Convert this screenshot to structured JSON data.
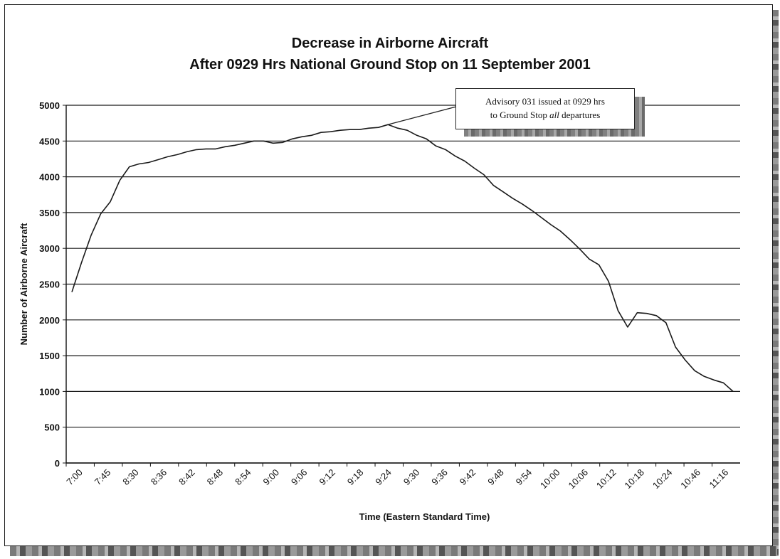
{
  "chart_data": {
    "type": "line",
    "title": "Decrease in Airborne Aircraft",
    "subtitle": "After 0929 Hrs National Ground Stop on 11 September 2001",
    "xlabel": "Time (Eastern Standard Time)",
    "ylabel": "Number of Airborne Aircraft",
    "ylim": [
      0,
      5000
    ],
    "yticks": [
      "0",
      "500",
      "1000",
      "1500",
      "2000",
      "2500",
      "3000",
      "3500",
      "4000",
      "4500",
      "5000"
    ],
    "x_tick_labels": [
      "7:00",
      "7:45",
      "8:30",
      "8:36",
      "8:42",
      "8:48",
      "8:54",
      "9:00",
      "9:06",
      "9:12",
      "9:18",
      "9:24",
      "9:30",
      "9:36",
      "9:42",
      "9:48",
      "9:54",
      "10:00",
      "10:06",
      "10:12",
      "10:18",
      "10:24",
      "10:46",
      "11:16"
    ],
    "grid": true,
    "series": [
      {
        "values": [
          2390,
          2800,
          3180,
          3480,
          3650,
          3950,
          4140,
          4180,
          4200,
          4240,
          4280,
          4310,
          4350,
          4380,
          4390,
          4390,
          4420,
          4440,
          4470,
          4500,
          4500,
          4470,
          4480,
          4530,
          4560,
          4580,
          4620,
          4630,
          4650,
          4660,
          4660,
          4680,
          4690,
          4730,
          4680,
          4650,
          4580,
          4530,
          4430,
          4380,
          4290,
          4220,
          4120,
          4030,
          3880,
          3790,
          3700,
          3620,
          3530,
          3430,
          3330,
          3240,
          3120,
          2990,
          2850,
          2770,
          2540,
          2130,
          1900,
          2100,
          2090,
          2060,
          1960,
          1620,
          1440,
          1290,
          1210,
          1160,
          1120,
          1000
        ]
      }
    ],
    "annotation": {
      "line1": "Advisory 031 issued at 0929 hrs",
      "line2_pre": "to Ground  Stop ",
      "line2_em": "all",
      "line2_post": " departures"
    },
    "colors": {
      "line": "#1a1a1a",
      "grid": "#1a1a1a"
    }
  }
}
